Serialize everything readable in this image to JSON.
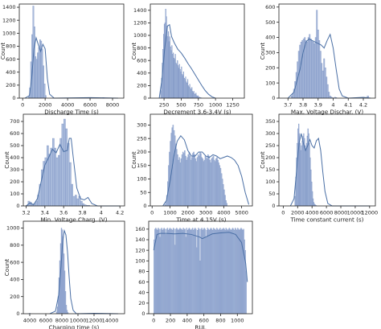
{
  "colors": {
    "bar_fill": "#a8badb",
    "bar_edge": "#6f88bd",
    "kde": "#4a6fa5",
    "axis": "#222222"
  },
  "chart_data": [
    {
      "type": "histogram",
      "xlabel": "Discharge Time (s)",
      "ylabel": "Count",
      "xlim": [
        -300,
        9000
      ],
      "ylim": [
        0,
        1450
      ],
      "xticks": [
        0,
        2000,
        4000,
        6000,
        8000
      ],
      "yticks": [
        0,
        200,
        400,
        600,
        800,
        1000,
        1200,
        1400
      ],
      "bins": {
        "start": 500,
        "width": 100,
        "counts": [
          20,
          160,
          560,
          980,
          1420,
          1100,
          640,
          600,
          700,
          780,
          900,
          880,
          760,
          500,
          220,
          40
        ]
      },
      "kde": [
        [
          200,
          0
        ],
        [
          600,
          40
        ],
        [
          800,
          300
        ],
        [
          1000,
          760
        ],
        [
          1200,
          930
        ],
        [
          1400,
          820
        ],
        [
          1600,
          720
        ],
        [
          1800,
          830
        ],
        [
          2000,
          760
        ],
        [
          2200,
          300
        ],
        [
          2400,
          60
        ],
        [
          2800,
          0
        ],
        [
          6000,
          8
        ],
        [
          7000,
          5
        ],
        [
          8500,
          0
        ]
      ],
      "outliers": [
        [
          6000,
          10
        ],
        [
          7200,
          8
        ]
      ]
    },
    {
      "type": "histogram",
      "xlabel": "Decrement 3.6-3.4V (s)",
      "ylabel": "Count",
      "xlim": [
        50,
        1420
      ],
      "ylim": [
        0,
        1500
      ],
      "xticks": [
        250,
        500,
        750,
        1000,
        1250
      ],
      "yticks": [
        0,
        200,
        400,
        600,
        800,
        1000,
        1200,
        1400
      ],
      "bins": {
        "start": 200,
        "width": 10,
        "counts": [
          120,
          320,
          560,
          780,
          1020,
          1180,
          1200,
          1420,
          1300,
          1150,
          980,
          1060,
          900,
          980,
          820,
          760,
          840,
          700,
          720,
          640,
          620,
          700,
          560,
          540,
          600,
          520,
          480,
          540,
          460,
          420,
          500,
          380,
          360,
          420,
          320,
          300,
          340,
          260,
          240,
          300,
          200,
          180,
          220,
          160,
          140,
          170,
          110,
          90,
          110,
          70,
          60,
          80,
          40,
          30,
          40,
          20,
          15,
          10,
          8,
          5
        ]
      },
      "kde": [
        [
          180,
          0
        ],
        [
          220,
          300
        ],
        [
          260,
          800
        ],
        [
          300,
          1150
        ],
        [
          330,
          1170
        ],
        [
          360,
          980
        ],
        [
          400,
          880
        ],
        [
          450,
          780
        ],
        [
          500,
          720
        ],
        [
          550,
          640
        ],
        [
          600,
          550
        ],
        [
          650,
          470
        ],
        [
          700,
          380
        ],
        [
          750,
          290
        ],
        [
          800,
          200
        ],
        [
          850,
          120
        ],
        [
          900,
          60
        ],
        [
          950,
          20
        ],
        [
          1000,
          0
        ]
      ],
      "outliers": []
    },
    {
      "type": "histogram",
      "xlabel": "Max. Voltage Dischar. (V)",
      "ylabel": "Count",
      "xlim": [
        3.64,
        4.28
      ],
      "ylim": [
        0,
        620
      ],
      "xticks": [
        3.7,
        3.8,
        3.9,
        4.0,
        4.1,
        4.2
      ],
      "yticks": [
        0,
        100,
        200,
        300,
        400,
        500,
        600
      ],
      "bins": {
        "start": 3.72,
        "width": 0.008,
        "counts": [
          15,
          30,
          60,
          110,
          170,
          240,
          310,
          350,
          370,
          380,
          390,
          400,
          380,
          370,
          400,
          420,
          390,
          380,
          370,
          360,
          400,
          580,
          450,
          380,
          310,
          230,
          180,
          260,
          200,
          140,
          90,
          40,
          15,
          8,
          3,
          2,
          6,
          4
        ]
      },
      "kde": [
        [
          3.7,
          0
        ],
        [
          3.74,
          40
        ],
        [
          3.78,
          190
        ],
        [
          3.8,
          300
        ],
        [
          3.82,
          370
        ],
        [
          3.84,
          390
        ],
        [
          3.86,
          380
        ],
        [
          3.88,
          370
        ],
        [
          3.9,
          360
        ],
        [
          3.92,
          350
        ],
        [
          3.94,
          330
        ],
        [
          3.96,
          380
        ],
        [
          3.98,
          420
        ],
        [
          4.0,
          330
        ],
        [
          4.02,
          190
        ],
        [
          4.04,
          60
        ],
        [
          4.06,
          15
        ],
        [
          4.1,
          0
        ],
        [
          4.2,
          5
        ],
        [
          4.25,
          0
        ]
      ],
      "outliers": [
        [
          4.23,
          15
        ]
      ]
    },
    {
      "type": "histogram",
      "xlabel": "Min. Voltage Charg. (V)",
      "ylabel": "Count",
      "xlim": [
        3.17,
        4.25
      ],
      "ylim": [
        0,
        760
      ],
      "xticks": [
        3.2,
        3.4,
        3.6,
        3.8,
        4.0,
        4.2
      ],
      "yticks": [
        0,
        100,
        200,
        300,
        400,
        500,
        600,
        700
      ],
      "bins": {
        "start": 3.2,
        "width": 0.02,
        "counts": [
          5,
          40,
          30,
          10,
          20,
          40,
          90,
          180,
          300,
          370,
          400,
          500,
          430,
          480,
          560,
          480,
          400,
          420,
          560,
          680,
          720,
          640,
          520,
          360,
          180,
          80,
          90,
          60,
          80,
          40,
          20,
          10,
          5,
          5
        ]
      },
      "kde": [
        [
          3.2,
          0
        ],
        [
          3.24,
          25
        ],
        [
          3.28,
          10
        ],
        [
          3.32,
          60
        ],
        [
          3.36,
          200
        ],
        [
          3.4,
          340
        ],
        [
          3.44,
          400
        ],
        [
          3.48,
          470
        ],
        [
          3.52,
          440
        ],
        [
          3.56,
          510
        ],
        [
          3.6,
          450
        ],
        [
          3.64,
          460
        ],
        [
          3.66,
          560
        ],
        [
          3.68,
          560
        ],
        [
          3.7,
          420
        ],
        [
          3.74,
          150
        ],
        [
          3.78,
          60
        ],
        [
          3.82,
          50
        ],
        [
          3.86,
          70
        ],
        [
          3.9,
          20
        ],
        [
          3.96,
          0
        ],
        [
          4.2,
          0
        ]
      ],
      "outliers": []
    },
    {
      "type": "histogram",
      "xlabel": "Time at 4.15V (s)",
      "ylabel": "Count",
      "xlim": [
        -100,
        5600
      ],
      "ylim": [
        0,
        340
      ],
      "xticks": [
        0,
        1000,
        2000,
        3000,
        4000,
        5000
      ],
      "yticks": [
        0,
        50,
        100,
        150,
        200,
        250,
        300
      ],
      "bins": {
        "start": 700,
        "width": 50,
        "counts": [
          5,
          15,
          40,
          90,
          150,
          200,
          240,
          270,
          290,
          300,
          280,
          260,
          230,
          210,
          190,
          170,
          180,
          160,
          175,
          190,
          200,
          195,
          205,
          185,
          170,
          180,
          190,
          200,
          185,
          170,
          180,
          195,
          200,
          190,
          175,
          165,
          180,
          190,
          185,
          200,
          195,
          180,
          175,
          165,
          170,
          185,
          180,
          175,
          190,
          185,
          170,
          160,
          175,
          180,
          185,
          170,
          165,
          175,
          180,
          170,
          160,
          150,
          140,
          120,
          100,
          80,
          60,
          40,
          20,
          10
        ]
      },
      "kde": [
        [
          600,
          0
        ],
        [
          800,
          20
        ],
        [
          1000,
          90
        ],
        [
          1200,
          180
        ],
        [
          1400,
          240
        ],
        [
          1600,
          260
        ],
        [
          1800,
          245
        ],
        [
          2000,
          205
        ],
        [
          2200,
          185
        ],
        [
          2400,
          185
        ],
        [
          2600,
          200
        ],
        [
          2800,
          200
        ],
        [
          3000,
          185
        ],
        [
          3200,
          180
        ],
        [
          3400,
          190
        ],
        [
          3600,
          185
        ],
        [
          3800,
          175
        ],
        [
          4000,
          180
        ],
        [
          4200,
          185
        ],
        [
          4400,
          180
        ],
        [
          4600,
          170
        ],
        [
          4800,
          150
        ],
        [
          5000,
          110
        ],
        [
          5200,
          50
        ],
        [
          5400,
          5
        ]
      ],
      "outliers": []
    },
    {
      "type": "histogram",
      "xlabel": "Time constant current (s)",
      "ylabel": "Count",
      "xlim": [
        -600,
        12800
      ],
      "ylim": [
        0,
        380
      ],
      "xticks": [
        0,
        2000,
        4000,
        6000,
        8000,
        10000,
        12000
      ],
      "yticks": [
        0,
        50,
        100,
        150,
        200,
        250,
        300,
        350
      ],
      "bins": {
        "start": 1600,
        "width": 100,
        "counts": [
          40,
          120,
          200,
          260,
          320,
          340,
          300,
          260,
          230,
          250,
          270,
          290,
          300,
          280,
          250,
          230,
          260,
          290,
          320,
          300,
          260,
          200,
          150,
          100,
          60,
          30,
          15,
          8,
          5,
          3
        ]
      },
      "kde": [
        [
          1000,
          0
        ],
        [
          1500,
          30
        ],
        [
          1900,
          160
        ],
        [
          2200,
          260
        ],
        [
          2500,
          300
        ],
        [
          2800,
          260
        ],
        [
          3100,
          230
        ],
        [
          3400,
          250
        ],
        [
          3700,
          275
        ],
        [
          4000,
          250
        ],
        [
          4300,
          240
        ],
        [
          4600,
          270
        ],
        [
          4900,
          280
        ],
        [
          5200,
          230
        ],
        [
          5500,
          140
        ],
        [
          5800,
          60
        ],
        [
          6200,
          10
        ],
        [
          6800,
          0
        ],
        [
          12000,
          0
        ]
      ],
      "outliers": []
    },
    {
      "type": "histogram",
      "xlabel": "Charging time (s)",
      "ylabel": "Count",
      "xlim": [
        3200,
        15800
      ],
      "ylim": [
        0,
        1080
      ],
      "xticks": [
        4000,
        6000,
        8000,
        10000,
        12000,
        14000
      ],
      "yticks": [
        0,
        200,
        400,
        600,
        800,
        1000
      ],
      "bins": {
        "start": 7300,
        "width": 100,
        "counts": [
          20,
          80,
          200,
          420,
          620,
          820,
          1000,
          980,
          900,
          700,
          500,
          260,
          100,
          40,
          15
        ]
      },
      "kde": [
        [
          6500,
          0
        ],
        [
          7200,
          30
        ],
        [
          7600,
          220
        ],
        [
          7900,
          560
        ],
        [
          8100,
          850
        ],
        [
          8300,
          970
        ],
        [
          8500,
          920
        ],
        [
          8700,
          720
        ],
        [
          8900,
          430
        ],
        [
          9100,
          180
        ],
        [
          9400,
          40
        ],
        [
          9800,
          0
        ],
        [
          12000,
          5
        ],
        [
          15000,
          0
        ]
      ],
      "outliers": [
        [
          4000,
          5
        ],
        [
          12200,
          5
        ]
      ]
    },
    {
      "type": "histogram",
      "xlabel": "RUL",
      "ylabel": "",
      "xlim": [
        -60,
        1180
      ],
      "ylim": [
        0,
        175
      ],
      "xticks": [
        0,
        200,
        400,
        600,
        800,
        1000
      ],
      "yticks": [
        0,
        20,
        40,
        60,
        80,
        100,
        120,
        140,
        160
      ],
      "bins": {
        "start": 0,
        "width": 10,
        "counts": [
          140,
          160,
          162,
          160,
          158,
          162,
          160,
          145,
          160,
          162,
          158,
          160,
          162,
          160,
          150,
          160,
          162,
          158,
          160,
          162,
          160,
          160,
          158,
          162,
          160,
          130,
          160,
          162,
          160,
          158,
          160,
          162,
          160,
          160,
          158,
          162,
          160,
          160,
          145,
          162,
          158,
          160,
          162,
          160,
          158,
          160,
          162,
          158,
          160,
          162,
          160,
          125,
          158,
          162,
          160,
          100,
          160,
          162,
          158,
          160,
          162,
          160,
          145,
          158,
          162,
          160,
          158,
          160,
          162,
          160,
          158,
          162,
          160,
          160,
          158,
          162,
          160,
          158,
          160,
          162,
          158,
          160,
          160,
          162,
          160,
          158,
          162,
          160,
          158,
          160,
          162,
          160,
          158,
          160,
          162,
          160,
          158,
          162,
          160,
          158,
          162,
          160,
          158,
          160,
          162,
          160,
          158,
          160,
          140,
          120,
          80
        ]
      },
      "kde": [
        [
          0,
          120
        ],
        [
          40,
          150
        ],
        [
          80,
          152
        ],
        [
          150,
          152
        ],
        [
          250,
          151
        ],
        [
          350,
          152
        ],
        [
          450,
          150
        ],
        [
          550,
          145
        ],
        [
          580,
          142
        ],
        [
          620,
          145
        ],
        [
          700,
          151
        ],
        [
          800,
          153
        ],
        [
          900,
          154
        ],
        [
          980,
          150
        ],
        [
          1050,
          135
        ],
        [
          1100,
          95
        ],
        [
          1120,
          60
        ]
      ],
      "outliers": []
    }
  ]
}
